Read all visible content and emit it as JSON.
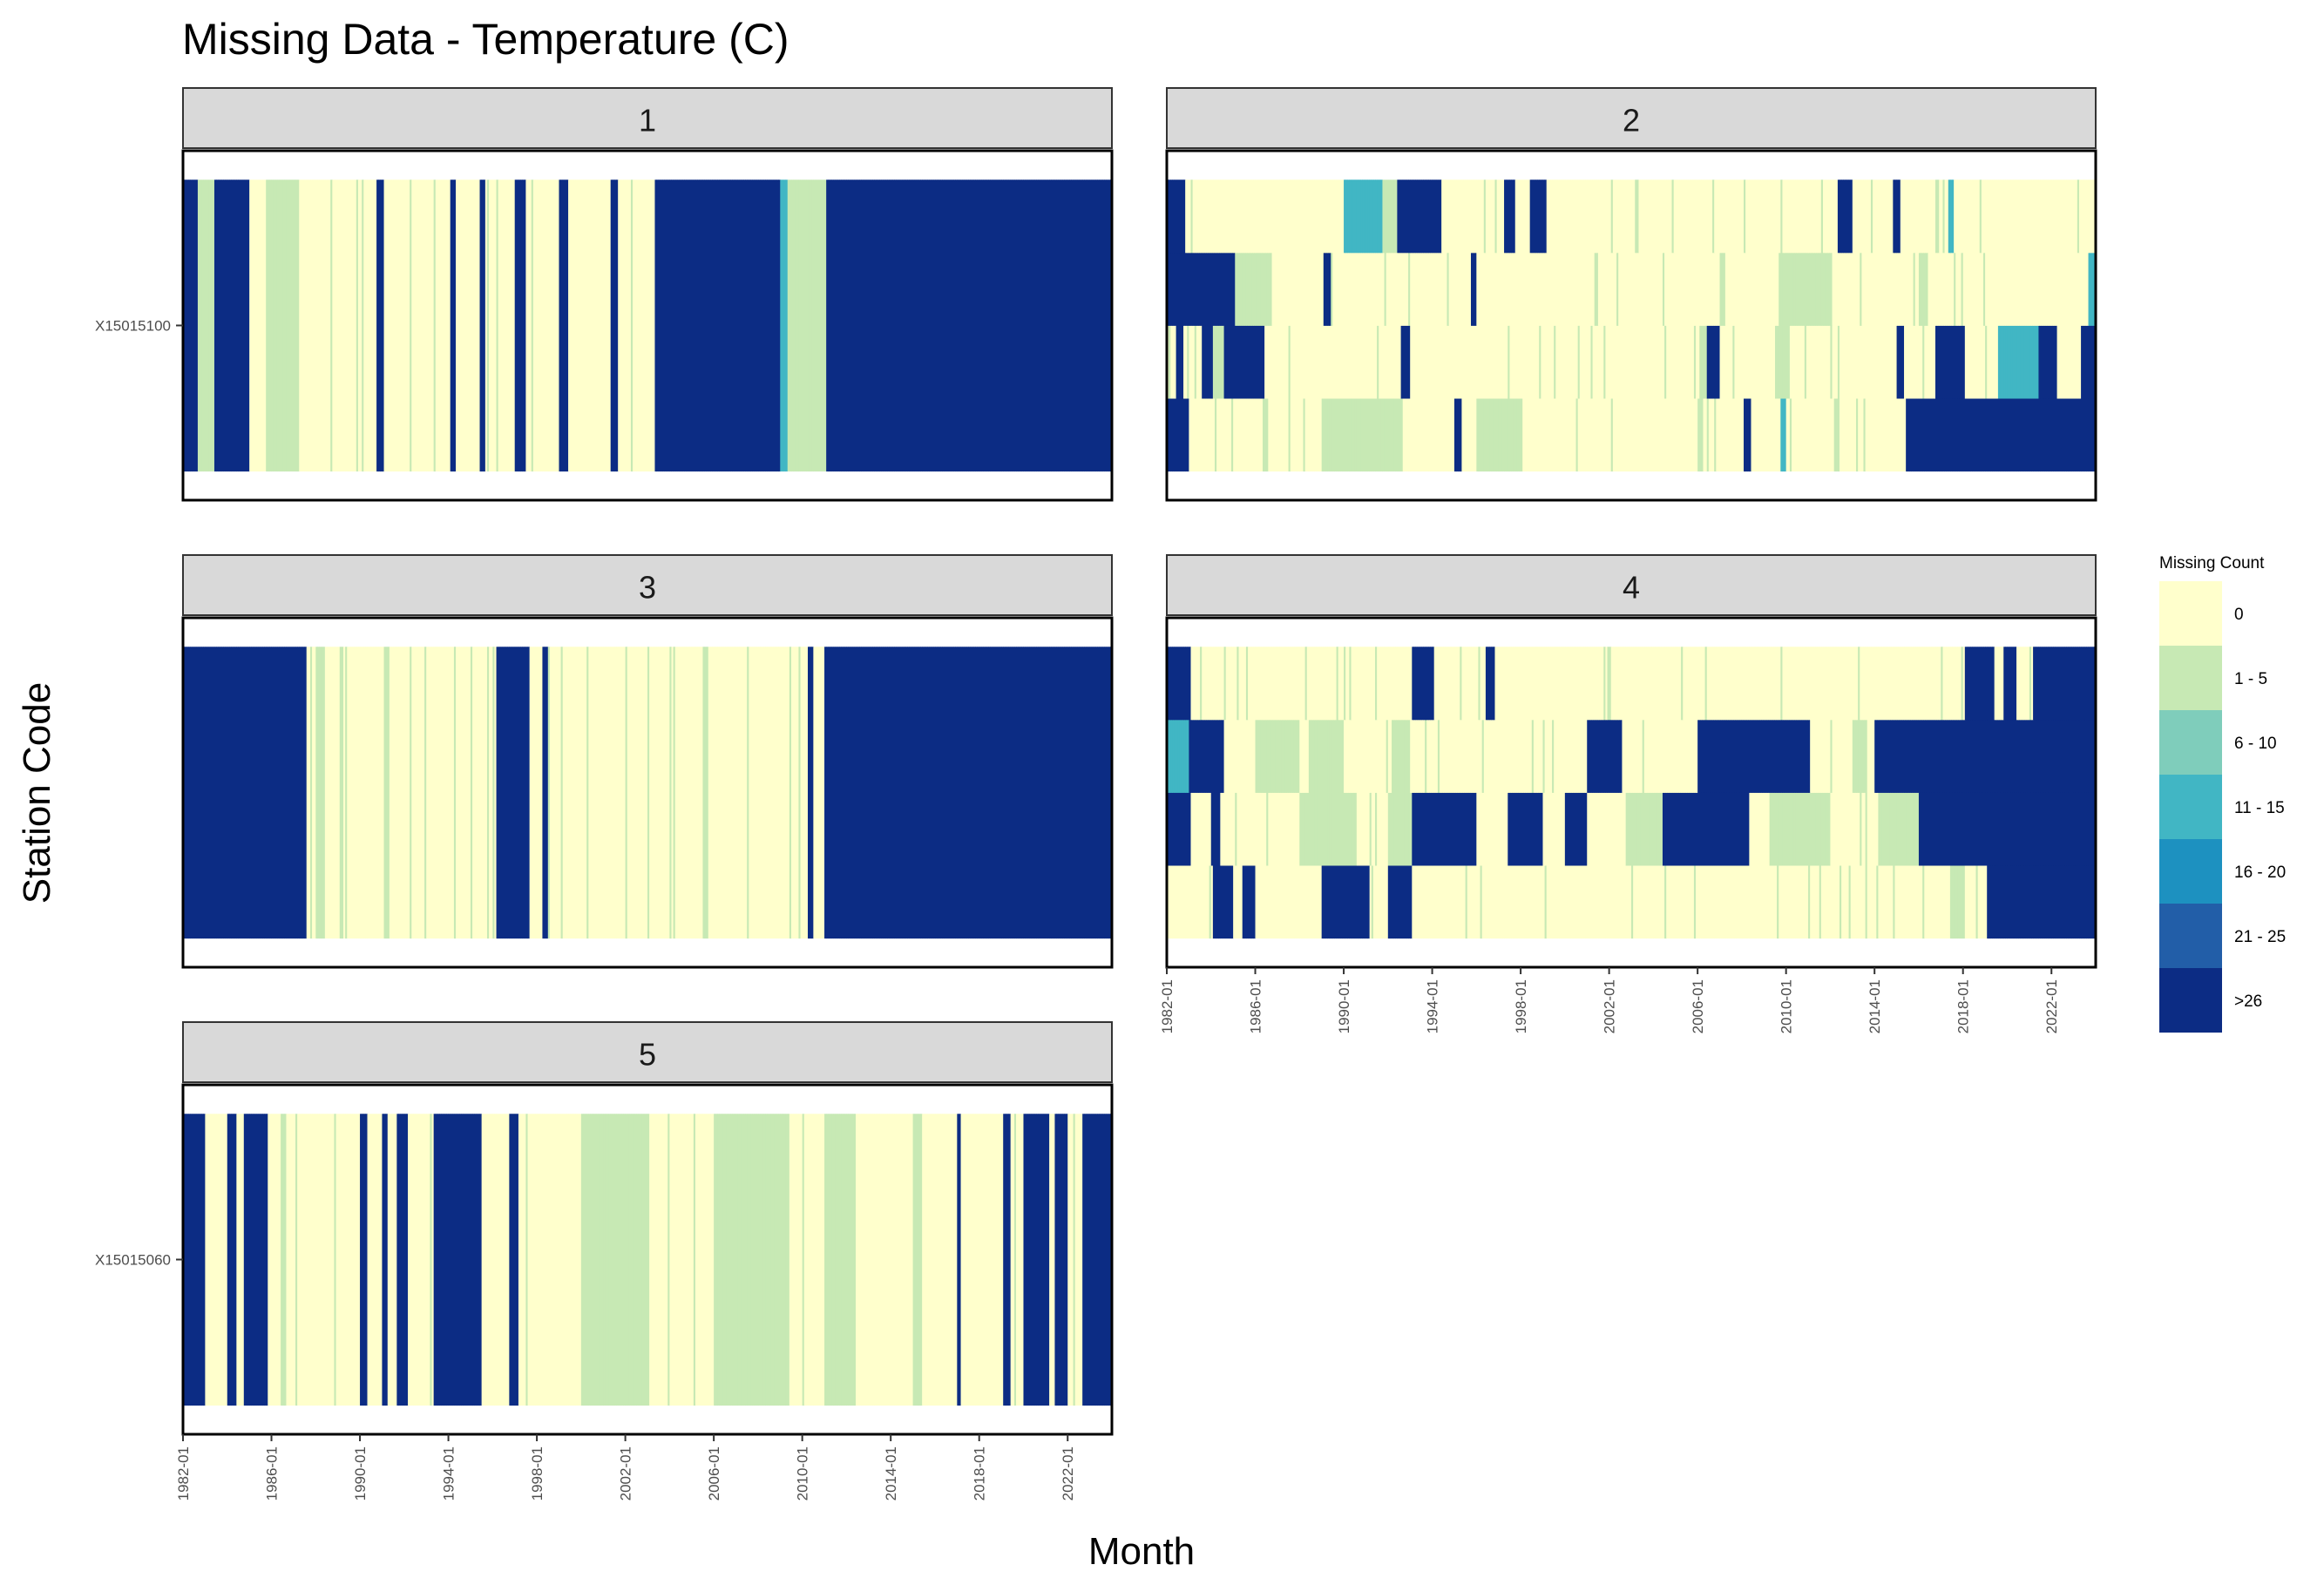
{
  "chart_data": {
    "type": "heatmap",
    "title": "Missing Data - Temperature (C)",
    "xlabel": "Month",
    "ylabel": "Station Code",
    "x_range": [
      "1982-01",
      "2023-12"
    ],
    "x_ticks": [
      "1982-01",
      "1986-01",
      "1990-01",
      "1994-01",
      "1998-01",
      "2002-01",
      "2006-01",
      "2010-01",
      "2014-01",
      "2018-01",
      "2022-01"
    ],
    "legend": {
      "title": "Missing Count",
      "position": "right",
      "bins": [
        {
          "label": "0",
          "color": "#FFFFCC"
        },
        {
          "label": "1 - 5",
          "color": "#C7E9B4"
        },
        {
          "label": "6 - 10",
          "color": "#7FCDBB"
        },
        {
          "label": "11 - 15",
          "color": "#41B6C4"
        },
        {
          "label": "16 - 20",
          "color": "#1D91C0"
        },
        {
          "label": "21 - 25",
          "color": "#225EA8"
        },
        {
          "label": ">26",
          "color": "#0C2C84"
        }
      ]
    },
    "panels": [
      {
        "strip": "1",
        "stations": [
          "X15015100"
        ],
        "show_y_labels": true,
        "show_x_axis": false,
        "rows": [
          [
            [
              "1982-01",
              6
            ],
            [
              "1982-09",
              1
            ],
            [
              "1983-06",
              6
            ],
            [
              "1985-01",
              0
            ],
            [
              "1985-10",
              1
            ],
            [
              "1987-04",
              0
            ],
            [
              "1990-10",
              6
            ],
            [
              "1991-02",
              0
            ],
            [
              "1994-02",
              6
            ],
            [
              "1994-05",
              0
            ],
            [
              "1995-06",
              6
            ],
            [
              "1995-09",
              0
            ],
            [
              "1997-01",
              6
            ],
            [
              "1997-07",
              0
            ],
            [
              "1999-01",
              6
            ],
            [
              "1999-06",
              0
            ],
            [
              "2001-05",
              6
            ],
            [
              "2001-09",
              0
            ],
            [
              "2003-05",
              6
            ],
            [
              "2009-01",
              3
            ],
            [
              "2009-05",
              1
            ],
            [
              "2011-02",
              6
            ]
          ]
        ]
      },
      {
        "strip": "2",
        "stations": [
          "",
          "",
          "",
          ""
        ],
        "show_y_labels": false,
        "show_x_axis": false,
        "rows": [
          [
            [
              "1982-01",
              6
            ],
            [
              "1983-01",
              0
            ],
            [
              "1986-05",
              1
            ],
            [
              "1986-08",
              0
            ],
            [
              "1989-01",
              1
            ],
            [
              "1992-09",
              0
            ],
            [
              "1995-01",
              6
            ],
            [
              "1995-05",
              0
            ],
            [
              "1996-01",
              1
            ],
            [
              "1998-02",
              0
            ],
            [
              "2006-01",
              1
            ],
            [
              "2006-04",
              0
            ],
            [
              "2008-02",
              6
            ],
            [
              "2008-06",
              0
            ],
            [
              "2009-10",
              3
            ],
            [
              "2010-01",
              0
            ],
            [
              "2015-06",
              6
            ]
          ],
          [
            [
              "1982-01",
              0
            ],
            [
              "1982-06",
              6
            ],
            [
              "1982-10",
              0
            ],
            [
              "1983-08",
              6
            ],
            [
              "1984-02",
              1
            ],
            [
              "1984-08",
              6
            ],
            [
              "1986-06",
              0
            ],
            [
              "1992-08",
              6
            ],
            [
              "1993-01",
              0
            ],
            [
              "2006-02",
              1
            ],
            [
              "2006-06",
              6
            ],
            [
              "2007-01",
              0
            ],
            [
              "2009-07",
              1
            ],
            [
              "2010-02",
              0
            ],
            [
              "2015-01",
              6
            ],
            [
              "2015-05",
              0
            ],
            [
              "2016-10",
              6
            ],
            [
              "2018-02",
              0
            ],
            [
              "2019-08",
              3
            ],
            [
              "2021-06",
              6
            ],
            [
              "2022-04",
              0
            ],
            [
              "2023-05",
              6
            ]
          ],
          [
            [
              "1982-01",
              6
            ],
            [
              "1985-02",
              1
            ],
            [
              "1986-10",
              0
            ],
            [
              "1989-02",
              6
            ],
            [
              "1989-06",
              0
            ],
            [
              "1995-10",
              6
            ],
            [
              "1996-01",
              0
            ],
            [
              "2007-01",
              1
            ],
            [
              "2007-04",
              0
            ],
            [
              "2009-09",
              1
            ],
            [
              "2012-02",
              0
            ],
            [
              "2016-01",
              1
            ],
            [
              "2016-06",
              0
            ],
            [
              "2023-09",
              3
            ]
          ],
          [
            [
              "1982-01",
              6
            ],
            [
              "1982-11",
              0
            ],
            [
              "1990-01",
              3
            ],
            [
              "1991-10",
              1
            ],
            [
              "1992-06",
              6
            ],
            [
              "1994-06",
              0
            ],
            [
              "1997-04",
              6
            ],
            [
              "1997-10",
              0
            ],
            [
              "1998-06",
              6
            ],
            [
              "1999-03",
              0
            ],
            [
              "2012-05",
              6
            ],
            [
              "2013-01",
              0
            ],
            [
              "2014-11",
              6
            ],
            [
              "2015-03",
              0
            ],
            [
              "2017-05",
              3
            ],
            [
              "2017-08",
              0
            ]
          ]
        ]
      },
      {
        "strip": "3",
        "stations": [
          ""
        ],
        "show_y_labels": false,
        "show_x_axis": false,
        "rows": [
          [
            [
              "1982-01",
              6
            ],
            [
              "1987-08",
              0
            ],
            [
              "1988-01",
              1
            ],
            [
              "1988-06",
              0
            ],
            [
              "1991-02",
              1
            ],
            [
              "1991-05",
              0
            ],
            [
              "1996-03",
              6
            ],
            [
              "1997-09",
              0
            ],
            [
              "1998-04",
              6
            ],
            [
              "1998-07",
              0
            ],
            [
              "2005-07",
              1
            ],
            [
              "2005-10",
              0
            ],
            [
              "2010-04",
              6
            ],
            [
              "2010-07",
              0
            ],
            [
              "2011-01",
              6
            ]
          ]
        ]
      },
      {
        "strip": "4",
        "stations": [
          "",
          "",
          "",
          ""
        ],
        "show_y_labels": false,
        "show_x_axis": true,
        "rows": [
          [
            [
              "1982-01",
              0
            ],
            [
              "1984-02",
              6
            ],
            [
              "1985-01",
              0
            ],
            [
              "1985-06",
              6
            ],
            [
              "1986-01",
              0
            ],
            [
              "1989-01",
              6
            ],
            [
              "1991-03",
              0
            ],
            [
              "1992-01",
              6
            ],
            [
              "1993-02",
              0
            ],
            [
              "2017-06",
              1
            ],
            [
              "2018-02",
              0
            ],
            [
              "2019-02",
              6
            ]
          ],
          [
            [
              "1982-01",
              6
            ],
            [
              "1983-02",
              0
            ],
            [
              "1984-01",
              6
            ],
            [
              "1984-06",
              0
            ],
            [
              "1988-01",
              1
            ],
            [
              "1990-08",
              0
            ],
            [
              "1992-01",
              1
            ],
            [
              "1993-02",
              6
            ],
            [
              "1996-01",
              0
            ],
            [
              "1997-06",
              6
            ],
            [
              "1999-01",
              0
            ],
            [
              "2000-01",
              6
            ],
            [
              "2001-01",
              0
            ],
            [
              "2002-10",
              1
            ],
            [
              "2004-06",
              6
            ],
            [
              "2008-05",
              0
            ],
            [
              "2009-04",
              1
            ],
            [
              "2012-01",
              0
            ],
            [
              "2014-03",
              1
            ],
            [
              "2016-01",
              6
            ]
          ],
          [
            [
              "1982-01",
              3
            ],
            [
              "1983-01",
              6
            ],
            [
              "1984-08",
              0
            ],
            [
              "1986-01",
              1
            ],
            [
              "1988-01",
              0
            ],
            [
              "1988-06",
              1
            ],
            [
              "1990-01",
              0
            ],
            [
              "1992-03",
              1
            ],
            [
              "1993-01",
              0
            ],
            [
              "2001-01",
              6
            ],
            [
              "2002-08",
              0
            ],
            [
              "2006-01",
              6
            ],
            [
              "2011-02",
              0
            ],
            [
              "2013-01",
              1
            ],
            [
              "2013-08",
              0
            ],
            [
              "2014-01",
              6
            ]
          ],
          [
            [
              "1982-01",
              6
            ],
            [
              "1983-02",
              0
            ],
            [
              "1993-02",
              6
            ],
            [
              "1994-02",
              0
            ],
            [
              "1996-06",
              6
            ],
            [
              "1996-11",
              0
            ],
            [
              "2018-02",
              6
            ],
            [
              "2019-06",
              0
            ],
            [
              "2019-11",
              6
            ],
            [
              "2020-06",
              0
            ],
            [
              "2021-03",
              6
            ]
          ]
        ]
      },
      {
        "strip": "5",
        "stations": [
          "X15015060"
        ],
        "show_y_labels": true,
        "show_x_axis": true,
        "rows": [
          [
            [
              "1982-01",
              6
            ],
            [
              "1983-01",
              0
            ],
            [
              "1984-01",
              6
            ],
            [
              "1984-06",
              0
            ],
            [
              "1984-10",
              6
            ],
            [
              "1985-11",
              0
            ],
            [
              "1986-06",
              1
            ],
            [
              "1986-09",
              0
            ],
            [
              "1990-01",
              6
            ],
            [
              "1990-05",
              0
            ],
            [
              "1991-01",
              6
            ],
            [
              "1991-04",
              0
            ],
            [
              "1991-09",
              6
            ],
            [
              "1992-03",
              0
            ],
            [
              "1993-05",
              6
            ],
            [
              "1995-07",
              0
            ],
            [
              "1996-10",
              6
            ],
            [
              "1997-03",
              0
            ],
            [
              "2000-01",
              1
            ],
            [
              "2003-01",
              0
            ],
            [
              "2006-01",
              1
            ],
            [
              "2009-06",
              0
            ],
            [
              "2011-01",
              1
            ],
            [
              "2012-06",
              0
            ],
            [
              "2015-01",
              1
            ],
            [
              "2015-06",
              0
            ],
            [
              "2017-01",
              6
            ],
            [
              "2017-03",
              0
            ],
            [
              "2019-02",
              6
            ],
            [
              "2019-06",
              0
            ],
            [
              "2020-01",
              6
            ],
            [
              "2021-03",
              0
            ],
            [
              "2021-06",
              6
            ],
            [
              "2022-01",
              0
            ],
            [
              "2022-09",
              6
            ]
          ]
        ]
      }
    ]
  }
}
